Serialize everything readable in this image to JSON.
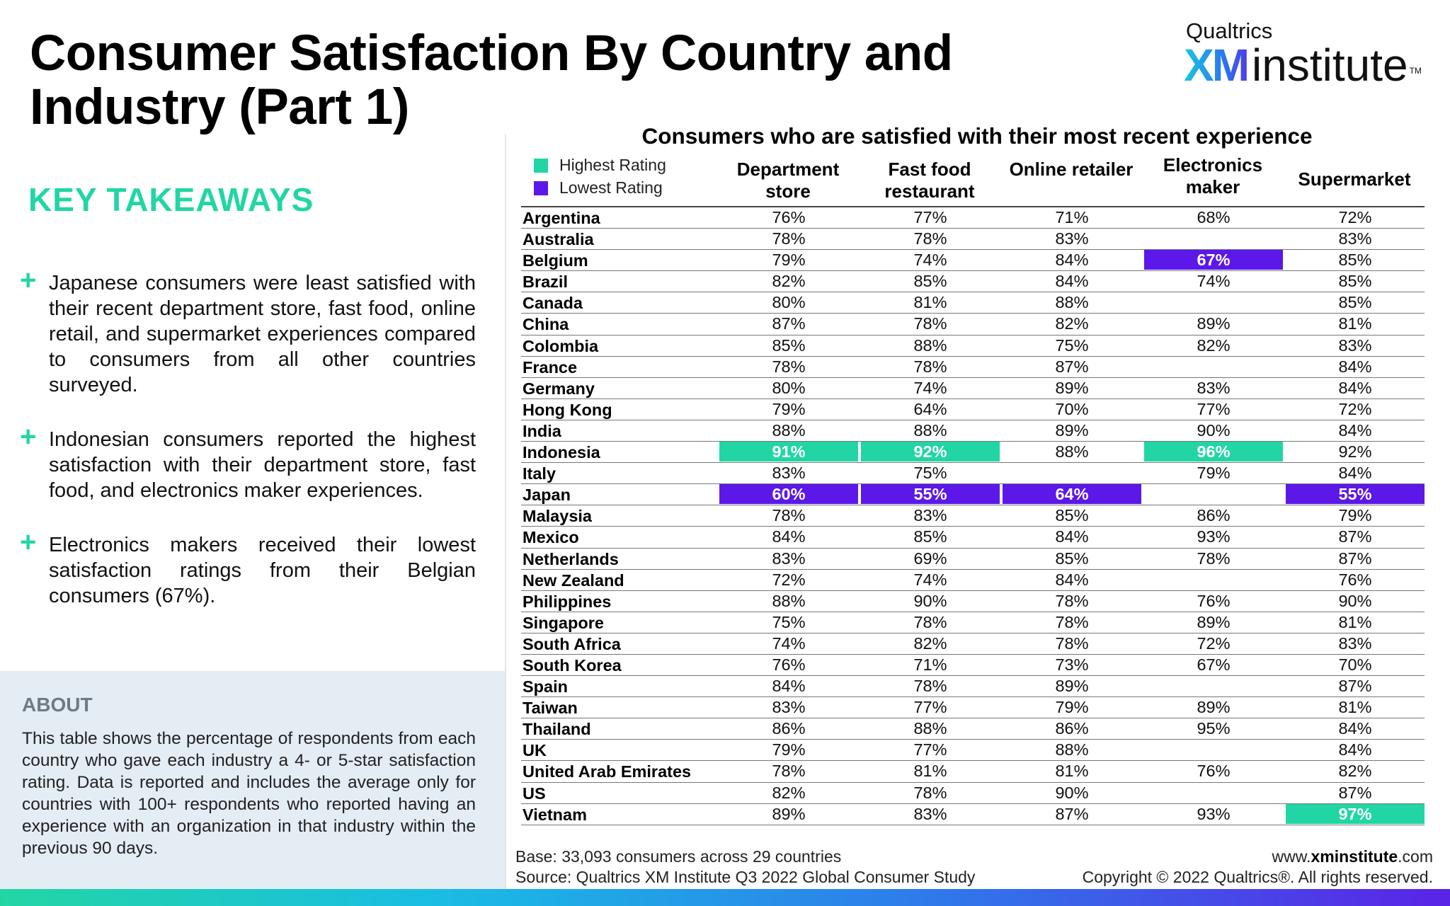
{
  "title": "Consumer Satisfaction By Country and Industry (Part 1)",
  "logo": {
    "top": "Qualtrics",
    "xm": "XM",
    "institute": "institute",
    "tm": "TM"
  },
  "key_takeaways": {
    "heading": "KEY TAKEAWAYS",
    "items": [
      "Japanese consumers were least satisfied with their recent department store, fast food, online retail, and supermarket experiences compared to consumers from all other countries surveyed.",
      "Indonesian consumers reported the highest satisfaction with their department store, fast food, and electronics maker experiences.",
      "Electronics makers received their lowest satisfaction ratings from their Belgian consumers (67%)."
    ]
  },
  "about": {
    "heading": "ABOUT",
    "text": "This table shows the percentage of respondents from each country who gave each industry a 4- or 5-star satisfaction rating. Data is reported and includes the average only for countries with 100+ respondents who reported having an experience with an organization in that industry within the previous 90 days."
  },
  "table": {
    "title": "Consumers who are satisfied with their most recent experience",
    "legend": [
      {
        "label": "Highest Rating",
        "color": "#21d6a4"
      },
      {
        "label": "Lowest Rating",
        "color": "#5b18e8"
      }
    ],
    "columns": [
      "Department store",
      "Fast food restaurant",
      "Online retailer",
      "Electronics maker",
      "Supermarket"
    ],
    "rows": [
      {
        "country": "Argentina",
        "values": [
          "76%",
          "77%",
          "71%",
          "68%",
          "72%"
        ]
      },
      {
        "country": "Australia",
        "values": [
          "78%",
          "78%",
          "83%",
          "",
          "83%"
        ]
      },
      {
        "country": "Belgium",
        "values": [
          "79%",
          "74%",
          "84%",
          "67%",
          "85%"
        ],
        "lowest": [
          3
        ]
      },
      {
        "country": "Brazil",
        "values": [
          "82%",
          "85%",
          "84%",
          "74%",
          "85%"
        ]
      },
      {
        "country": "Canada",
        "values": [
          "80%",
          "81%",
          "88%",
          "",
          "85%"
        ]
      },
      {
        "country": "China",
        "values": [
          "87%",
          "78%",
          "82%",
          "89%",
          "81%"
        ]
      },
      {
        "country": "Colombia",
        "values": [
          "85%",
          "88%",
          "75%",
          "82%",
          "83%"
        ]
      },
      {
        "country": "France",
        "values": [
          "78%",
          "78%",
          "87%",
          "",
          "84%"
        ]
      },
      {
        "country": "Germany",
        "values": [
          "80%",
          "74%",
          "89%",
          "83%",
          "84%"
        ]
      },
      {
        "country": "Hong Kong",
        "values": [
          "79%",
          "64%",
          "70%",
          "77%",
          "72%"
        ]
      },
      {
        "country": "India",
        "values": [
          "88%",
          "88%",
          "89%",
          "90%",
          "84%"
        ]
      },
      {
        "country": "Indonesia",
        "values": [
          "91%",
          "92%",
          "88%",
          "96%",
          "92%"
        ],
        "highest": [
          0,
          1,
          3
        ]
      },
      {
        "country": "Italy",
        "values": [
          "83%",
          "75%",
          "",
          "79%",
          "84%"
        ]
      },
      {
        "country": "Japan",
        "values": [
          "60%",
          "55%",
          "64%",
          "",
          "55%"
        ],
        "lowest": [
          0,
          1,
          2,
          4
        ]
      },
      {
        "country": "Malaysia",
        "values": [
          "78%",
          "83%",
          "85%",
          "86%",
          "79%"
        ]
      },
      {
        "country": "Mexico",
        "values": [
          "84%",
          "85%",
          "84%",
          "93%",
          "87%"
        ]
      },
      {
        "country": "Netherlands",
        "values": [
          "83%",
          "69%",
          "85%",
          "78%",
          "87%"
        ]
      },
      {
        "country": "New Zealand",
        "values": [
          "72%",
          "74%",
          "84%",
          "",
          "76%"
        ]
      },
      {
        "country": "Philippines",
        "values": [
          "88%",
          "90%",
          "78%",
          "76%",
          "90%"
        ]
      },
      {
        "country": "Singapore",
        "values": [
          "75%",
          "78%",
          "78%",
          "89%",
          "81%"
        ]
      },
      {
        "country": "South Africa",
        "values": [
          "74%",
          "82%",
          "78%",
          "72%",
          "83%"
        ]
      },
      {
        "country": "South Korea",
        "values": [
          "76%",
          "71%",
          "73%",
          "67%",
          "70%"
        ]
      },
      {
        "country": "Spain",
        "values": [
          "84%",
          "78%",
          "89%",
          "",
          "87%"
        ]
      },
      {
        "country": "Taiwan",
        "values": [
          "83%",
          "77%",
          "79%",
          "89%",
          "81%"
        ]
      },
      {
        "country": "Thailand",
        "values": [
          "86%",
          "88%",
          "86%",
          "95%",
          "84%"
        ]
      },
      {
        "country": "UK",
        "values": [
          "79%",
          "77%",
          "88%",
          "",
          "84%"
        ]
      },
      {
        "country": "United Arab Emirates",
        "values": [
          "78%",
          "81%",
          "81%",
          "76%",
          "82%"
        ]
      },
      {
        "country": "US",
        "values": [
          "82%",
          "78%",
          "90%",
          "",
          "87%"
        ]
      },
      {
        "country": "Vietnam",
        "values": [
          "89%",
          "83%",
          "87%",
          "93%",
          "97%"
        ],
        "highest": [
          4
        ]
      }
    ]
  },
  "footer": {
    "base": "Base: 33,093 consumers across 29 countries",
    "source": "Source: Qualtrics XM Institute Q3 2022 Global Consumer Study",
    "url_prefix": "www.",
    "url_bold": "xminstitute",
    "url_suffix": ".com",
    "copyright": "Copyright © 2022 Qualtrics®. All rights reserved."
  }
}
